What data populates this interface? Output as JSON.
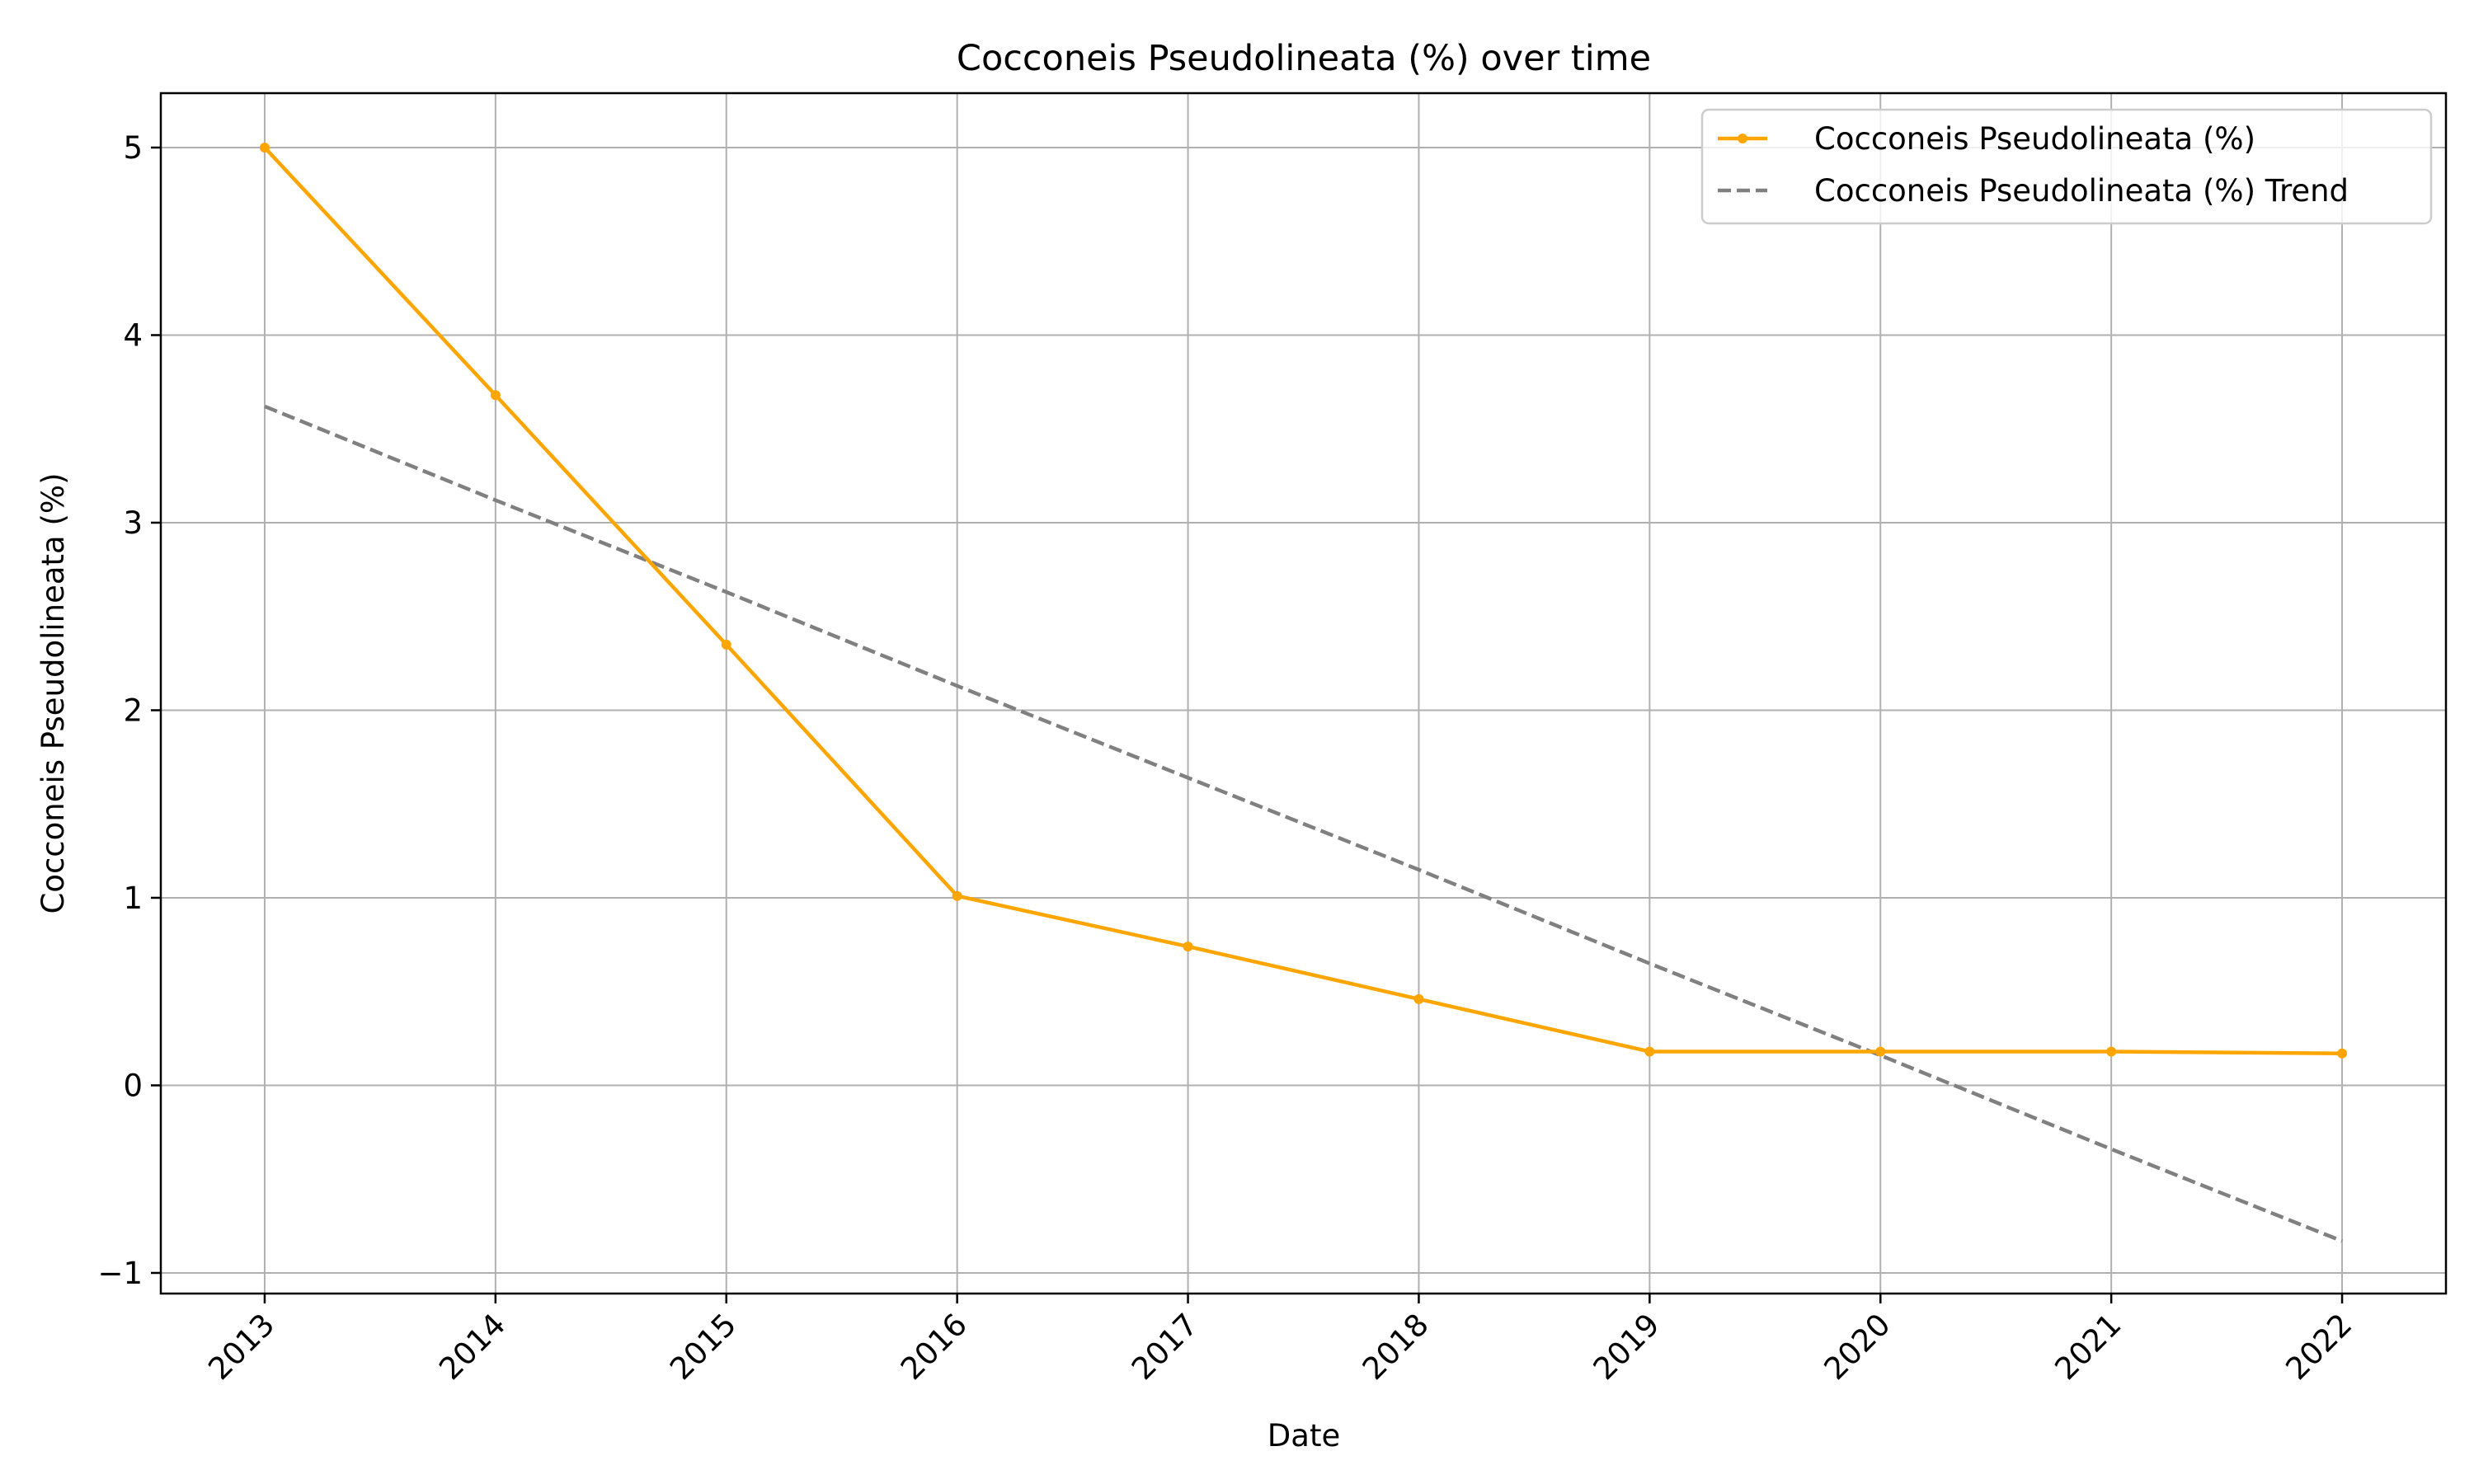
{
  "chart_data": {
    "type": "line",
    "title": "Cocconeis Pseudolineata (%) over time",
    "xlabel": "Date",
    "ylabel": "Cocconeis Pseudolineata (%)",
    "x": [
      "2013",
      "2014",
      "2015",
      "2016",
      "2017",
      "2018",
      "2019",
      "2020",
      "2021",
      "2022"
    ],
    "series": [
      {
        "name": "Cocconeis Pseudolineata (%)",
        "values": [
          5.0,
          3.68,
          2.35,
          1.01,
          0.74,
          0.46,
          0.18,
          0.18,
          0.18,
          0.17
        ],
        "color": "#FFA500",
        "style": "solid",
        "marker": "circle"
      },
      {
        "name": "Cocconeis Pseudolineata (%) Trend",
        "values": [
          3.62,
          3.12,
          2.63,
          2.13,
          1.64,
          1.15,
          0.65,
          0.16,
          -0.34,
          -0.83
        ],
        "color": "#808080",
        "style": "dashed",
        "marker": "none"
      }
    ],
    "yticks": [
      -1,
      0,
      1,
      2,
      3,
      4,
      5
    ],
    "ytick_labels": [
      "−1",
      "0",
      "1",
      "2",
      "3",
      "4",
      "5"
    ],
    "ylim": [
      -1.11,
      5.29
    ],
    "xlim_index": [
      -0.45,
      9.45
    ],
    "grid": true,
    "grid_color": "#b0b0b0",
    "legend_position": "top-right",
    "xtick_rotation": 45
  }
}
